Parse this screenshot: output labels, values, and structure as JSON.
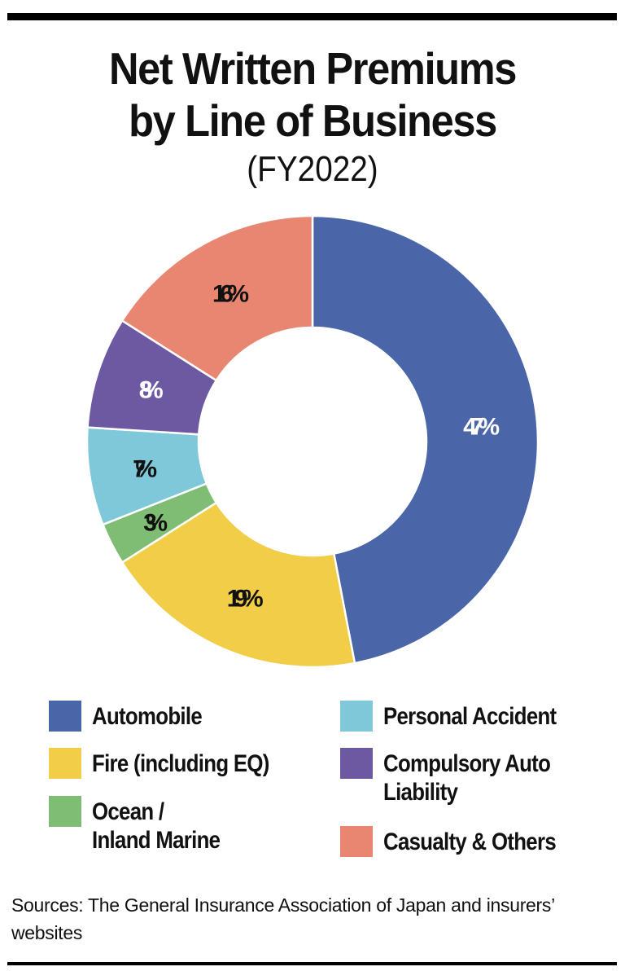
{
  "header": {
    "title_line1": "Net Written Premiums",
    "title_line2": "by Line of Business",
    "subtitle": "(FY2022)"
  },
  "legend": {
    "items": [
      {
        "label": "Automobile",
        "color": "#4a66a9"
      },
      {
        "label": "Fire (including EQ)",
        "color": "#f2cd48"
      },
      {
        "label": "Ocean /\nInland Marine",
        "color": "#80bd74"
      },
      {
        "label": "Personal Accident",
        "color": "#7ec8d9"
      },
      {
        "label": "Compulsory Auto\nLiability",
        "color": "#6d59a2"
      },
      {
        "label": "Casualty & Others",
        "color": "#e88672"
      }
    ]
  },
  "footer": {
    "source": "Sources: The General Insurance Association of Japan and insurers’ websites"
  },
  "chart_data": {
    "type": "pie",
    "subtype": "donut",
    "title": "Net Written Premiums by Line of Business",
    "subtitle": "(FY2022)",
    "categories": [
      "Automobile",
      "Fire (including EQ)",
      "Ocean / Inland Marine",
      "Personal Accident",
      "Compulsory Auto Liability",
      "Casualty & Others"
    ],
    "values": [
      47,
      19,
      3,
      7,
      8,
      16
    ],
    "labels": [
      "47%",
      "19%",
      "3%",
      "7%",
      "8%",
      "16%"
    ],
    "colors": [
      "#4a66a9",
      "#f2cd48",
      "#80bd74",
      "#7ec8d9",
      "#6d59a2",
      "#e88672"
    ],
    "label_colors": [
      "#ffffff",
      "#111111",
      "#111111",
      "#111111",
      "#ffffff",
      "#111111"
    ],
    "unit": "%",
    "start_angle": "12 o'clock, clockwise",
    "legend_position": "bottom, two columns",
    "source": "Sources: The General Insurance Association of Japan and insurers’ websites"
  }
}
